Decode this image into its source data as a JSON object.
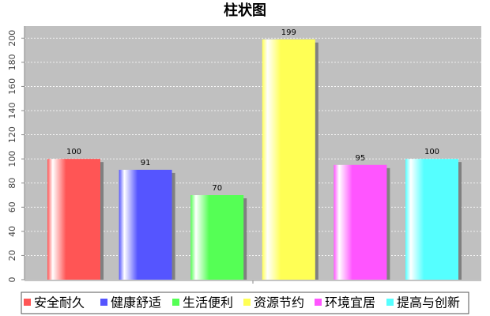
{
  "chart_data": {
    "type": "bar",
    "title": "柱状图",
    "categories": [
      null
    ],
    "series": [
      {
        "name": "安全耐久",
        "color": "#ff5555",
        "values": [
          100
        ]
      },
      {
        "name": "健康舒适",
        "color": "#5555ff",
        "values": [
          91
        ]
      },
      {
        "name": "生活便利",
        "color": "#55ff55",
        "values": [
          70
        ]
      },
      {
        "name": "资源节约",
        "color": "#ffff55",
        "values": [
          199
        ]
      },
      {
        "name": "环境宜居",
        "color": "#ff55ff",
        "values": [
          95
        ]
      },
      {
        "name": "提高与创新",
        "color": "#55ffff",
        "values": [
          100
        ]
      }
    ],
    "ylim": [
      0,
      210
    ],
    "yticks": [
      0,
      20,
      40,
      60,
      80,
      100,
      120,
      140,
      160,
      180,
      200
    ],
    "grid": true,
    "legend": "bottom"
  }
}
